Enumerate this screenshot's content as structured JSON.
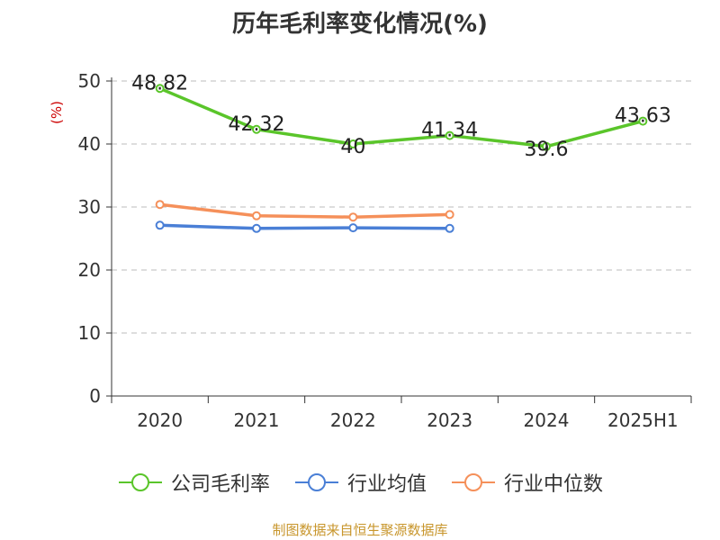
{
  "chart_data": {
    "type": "line",
    "title": "历年毛利率变化情况(%)",
    "ylabel": "(%)",
    "categories": [
      "2020",
      "2021",
      "2022",
      "2023",
      "2024",
      "2025H1"
    ],
    "ylim": [
      0,
      50
    ],
    "yticks": [
      0,
      10,
      20,
      30,
      40,
      50
    ],
    "grid": true,
    "legend_position": "bottom",
    "series": [
      {
        "name": "公司毛利率",
        "color": "#5ac52a",
        "values": [
          48.82,
          42.32,
          40,
          41.34,
          39.6,
          43.63
        ],
        "labels": [
          "48.82",
          "42.32",
          "40",
          "41.34",
          "39.6",
          "43.63"
        ],
        "show_labels": true
      },
      {
        "name": "行业均值",
        "color": "#4a7fd6",
        "values": [
          27.1,
          26.6,
          26.7,
          26.6,
          null,
          null
        ],
        "show_labels": false
      },
      {
        "name": "行业中位数",
        "color": "#f5905a",
        "values": [
          30.4,
          28.6,
          28.4,
          28.8,
          null,
          null
        ],
        "show_labels": false
      }
    ]
  },
  "source": "制图数据来自恒生聚源数据库"
}
